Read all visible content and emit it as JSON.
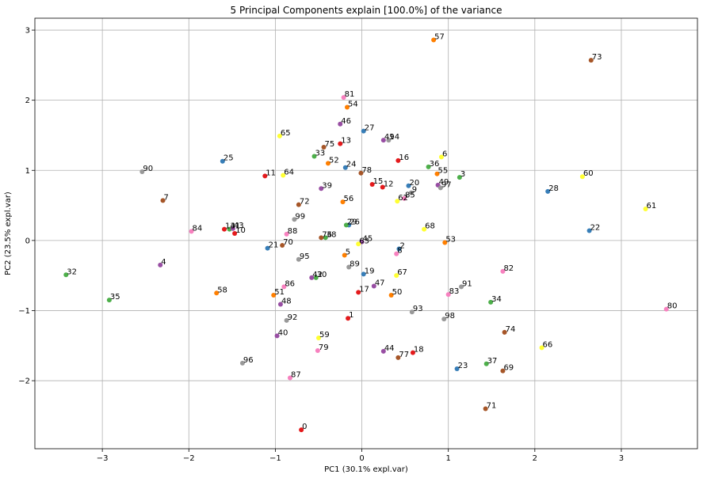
{
  "chart_data": {
    "type": "scatter",
    "title": "5 Principal Components explain [100.0%] of the variance",
    "xlabel": "PC1 (30.1% expl.var)",
    "ylabel": "PC2 (23.5% expl.var)",
    "xlim": [
      -3.78,
      3.88
    ],
    "ylim": [
      -2.97,
      3.17
    ],
    "xticks": [
      -3,
      -2,
      -1,
      0,
      1,
      2,
      3
    ],
    "yticks": [
      -2,
      -1,
      0,
      1,
      2,
      3
    ],
    "grid": true,
    "colors": {
      "blue": "#377eb8",
      "orange": "#ff7f00",
      "green": "#4daf4a",
      "red": "#e41a1c",
      "purple": "#984ea3",
      "brown": "#a65628",
      "pink": "#f781bf",
      "gray": "#999999",
      "yellow": "#ffff33"
    },
    "points": [
      {
        "label": "0",
        "x": -0.7,
        "y": -2.7,
        "color": "red"
      },
      {
        "label": "1",
        "x": -0.16,
        "y": -1.11,
        "color": "red"
      },
      {
        "label": "2",
        "x": 0.43,
        "y": -0.12,
        "color": "blue"
      },
      {
        "label": "3",
        "x": 1.13,
        "y": 0.9,
        "color": "green"
      },
      {
        "label": "4",
        "x": -2.33,
        "y": -0.35,
        "color": "purple"
      },
      {
        "label": "5",
        "x": -0.2,
        "y": -0.21,
        "color": "orange"
      },
      {
        "label": "6",
        "x": 0.92,
        "y": 1.19,
        "color": "yellow"
      },
      {
        "label": "7",
        "x": -2.3,
        "y": 0.57,
        "color": "brown"
      },
      {
        "label": "8",
        "x": 0.4,
        "y": -0.19,
        "color": "pink"
      },
      {
        "label": "9",
        "x": 0.57,
        "y": 0.68,
        "color": "gray"
      },
      {
        "label": "10",
        "x": -1.47,
        "y": 0.1,
        "color": "red"
      },
      {
        "label": "11",
        "x": -1.12,
        "y": 0.92,
        "color": "red"
      },
      {
        "label": "12",
        "x": 0.24,
        "y": 0.76,
        "color": "red"
      },
      {
        "label": "13",
        "x": -0.25,
        "y": 1.38,
        "color": "red"
      },
      {
        "label": "14",
        "x": -1.59,
        "y": 0.16,
        "color": "red"
      },
      {
        "label": "15",
        "x": 0.12,
        "y": 0.8,
        "color": "red"
      },
      {
        "label": "16",
        "x": 0.42,
        "y": 1.14,
        "color": "red"
      },
      {
        "label": "17",
        "x": -0.04,
        "y": -0.74,
        "color": "red"
      },
      {
        "label": "18",
        "x": 0.59,
        "y": -1.6,
        "color": "red"
      },
      {
        "label": "19",
        "x": 0.02,
        "y": -0.48,
        "color": "blue"
      },
      {
        "label": "20",
        "x": 0.54,
        "y": 0.78,
        "color": "blue"
      },
      {
        "label": "21",
        "x": -1.09,
        "y": -0.11,
        "color": "blue"
      },
      {
        "label": "22",
        "x": 2.63,
        "y": 0.14,
        "color": "blue"
      },
      {
        "label": "23",
        "x": 1.1,
        "y": -1.83,
        "color": "blue"
      },
      {
        "label": "24",
        "x": -0.19,
        "y": 1.04,
        "color": "blue"
      },
      {
        "label": "25",
        "x": -1.61,
        "y": 1.13,
        "color": "blue"
      },
      {
        "label": "26",
        "x": -0.15,
        "y": 0.22,
        "color": "blue"
      },
      {
        "label": "27",
        "x": 0.02,
        "y": 1.56,
        "color": "blue"
      },
      {
        "label": "28",
        "x": 2.15,
        "y": 0.7,
        "color": "blue"
      },
      {
        "label": "29",
        "x": -0.18,
        "y": 0.22,
        "color": "green"
      },
      {
        "label": "30",
        "x": -0.53,
        "y": -0.53,
        "color": "green"
      },
      {
        "label": "31",
        "x": -1.53,
        "y": 0.16,
        "color": "green"
      },
      {
        "label": "32",
        "x": -3.42,
        "y": -0.49,
        "color": "green"
      },
      {
        "label": "33",
        "x": -0.55,
        "y": 1.2,
        "color": "green"
      },
      {
        "label": "34",
        "x": 1.49,
        "y": -0.88,
        "color": "green"
      },
      {
        "label": "35",
        "x": -2.92,
        "y": -0.85,
        "color": "green"
      },
      {
        "label": "36",
        "x": 0.77,
        "y": 1.05,
        "color": "green"
      },
      {
        "label": "37",
        "x": 1.44,
        "y": -1.76,
        "color": "green"
      },
      {
        "label": "38",
        "x": -0.42,
        "y": 0.04,
        "color": "green"
      },
      {
        "label": "39",
        "x": -0.47,
        "y": 0.74,
        "color": "purple"
      },
      {
        "label": "40",
        "x": -0.98,
        "y": -1.36,
        "color": "purple"
      },
      {
        "label": "41",
        "x": 0.25,
        "y": 1.43,
        "color": "purple"
      },
      {
        "label": "42",
        "x": -0.58,
        "y": -0.53,
        "color": "purple"
      },
      {
        "label": "43",
        "x": -1.49,
        "y": 0.17,
        "color": "purple"
      },
      {
        "label": "44",
        "x": 0.25,
        "y": -1.58,
        "color": "purple"
      },
      {
        "label": "45",
        "x": 0.0,
        "y": -0.02,
        "color": "purple"
      },
      {
        "label": "46",
        "x": -0.25,
        "y": 1.66,
        "color": "purple"
      },
      {
        "label": "47",
        "x": 0.14,
        "y": -0.65,
        "color": "purple"
      },
      {
        "label": "48",
        "x": -0.94,
        "y": -0.91,
        "color": "purple"
      },
      {
        "label": "49",
        "x": 0.88,
        "y": 0.79,
        "color": "purple"
      },
      {
        "label": "50",
        "x": 0.34,
        "y": -0.78,
        "color": "orange"
      },
      {
        "label": "51",
        "x": -1.02,
        "y": -0.78,
        "color": "orange"
      },
      {
        "label": "52",
        "x": -0.39,
        "y": 1.1,
        "color": "orange"
      },
      {
        "label": "53",
        "x": 0.96,
        "y": -0.03,
        "color": "orange"
      },
      {
        "label": "54",
        "x": -0.17,
        "y": 1.9,
        "color": "orange"
      },
      {
        "label": "55",
        "x": 0.87,
        "y": 0.95,
        "color": "orange"
      },
      {
        "label": "56",
        "x": -0.22,
        "y": 0.55,
        "color": "orange"
      },
      {
        "label": "57",
        "x": 0.83,
        "y": 2.86,
        "color": "orange"
      },
      {
        "label": "58",
        "x": -1.68,
        "y": -0.75,
        "color": "orange"
      },
      {
        "label": "59",
        "x": -0.5,
        "y": -1.39,
        "color": "yellow"
      },
      {
        "label": "60",
        "x": 2.55,
        "y": 0.91,
        "color": "yellow"
      },
      {
        "label": "61",
        "x": 3.28,
        "y": 0.45,
        "color": "yellow"
      },
      {
        "label": "62",
        "x": 0.41,
        "y": 0.56,
        "color": "yellow"
      },
      {
        "label": "63",
        "x": -0.04,
        "y": -0.05,
        "color": "yellow"
      },
      {
        "label": "64",
        "x": -0.91,
        "y": 0.93,
        "color": "yellow"
      },
      {
        "label": "65",
        "x": -0.95,
        "y": 1.49,
        "color": "yellow"
      },
      {
        "label": "66",
        "x": 2.08,
        "y": -1.53,
        "color": "yellow"
      },
      {
        "label": "67",
        "x": 0.4,
        "y": -0.5,
        "color": "yellow"
      },
      {
        "label": "68",
        "x": 0.72,
        "y": 0.16,
        "color": "yellow"
      },
      {
        "label": "69",
        "x": 1.63,
        "y": -1.86,
        "color": "brown"
      },
      {
        "label": "70",
        "x": -0.92,
        "y": -0.07,
        "color": "brown"
      },
      {
        "label": "71",
        "x": 1.43,
        "y": -2.4,
        "color": "brown"
      },
      {
        "label": "72",
        "x": -0.73,
        "y": 0.51,
        "color": "brown"
      },
      {
        "label": "73",
        "x": 2.65,
        "y": 2.57,
        "color": "brown"
      },
      {
        "label": "74",
        "x": 1.65,
        "y": -1.31,
        "color": "brown"
      },
      {
        "label": "75",
        "x": -0.44,
        "y": 1.33,
        "color": "brown"
      },
      {
        "label": "76",
        "x": -0.47,
        "y": 0.04,
        "color": "brown"
      },
      {
        "label": "77",
        "x": 0.42,
        "y": -1.67,
        "color": "brown"
      },
      {
        "label": "78",
        "x": -0.01,
        "y": 0.96,
        "color": "brown"
      },
      {
        "label": "79",
        "x": -0.51,
        "y": -1.57,
        "color": "pink"
      },
      {
        "label": "80",
        "x": 3.52,
        "y": -0.98,
        "color": "pink"
      },
      {
        "label": "81",
        "x": -0.21,
        "y": 2.04,
        "color": "pink"
      },
      {
        "label": "82",
        "x": 1.63,
        "y": -0.44,
        "color": "pink"
      },
      {
        "label": "83",
        "x": 1.0,
        "y": -0.77,
        "color": "pink"
      },
      {
        "label": "84",
        "x": -1.97,
        "y": 0.13,
        "color": "pink"
      },
      {
        "label": "85",
        "x": 0.49,
        "y": 0.6,
        "color": "pink"
      },
      {
        "label": "86",
        "x": -0.9,
        "y": -0.66,
        "color": "pink"
      },
      {
        "label": "87",
        "x": -0.83,
        "y": -1.96,
        "color": "pink"
      },
      {
        "label": "88",
        "x": -0.87,
        "y": 0.09,
        "color": "pink"
      },
      {
        "label": "89",
        "x": -0.15,
        "y": -0.38,
        "color": "gray"
      },
      {
        "label": "90",
        "x": -2.54,
        "y": 0.98,
        "color": "gray"
      },
      {
        "label": "91",
        "x": 1.15,
        "y": -0.66,
        "color": "gray"
      },
      {
        "label": "92",
        "x": -0.87,
        "y": -1.14,
        "color": "gray"
      },
      {
        "label": "93",
        "x": 0.58,
        "y": -1.02,
        "color": "gray"
      },
      {
        "label": "94",
        "x": 0.31,
        "y": 1.43,
        "color": "gray"
      },
      {
        "label": "95",
        "x": -0.73,
        "y": -0.27,
        "color": "gray"
      },
      {
        "label": "96",
        "x": -1.38,
        "y": -1.75,
        "color": "gray"
      },
      {
        "label": "97",
        "x": 0.91,
        "y": 0.75,
        "color": "gray"
      },
      {
        "label": "98",
        "x": 0.95,
        "y": -1.12,
        "color": "gray"
      },
      {
        "label": "99",
        "x": -0.78,
        "y": 0.3,
        "color": "gray"
      }
    ]
  }
}
